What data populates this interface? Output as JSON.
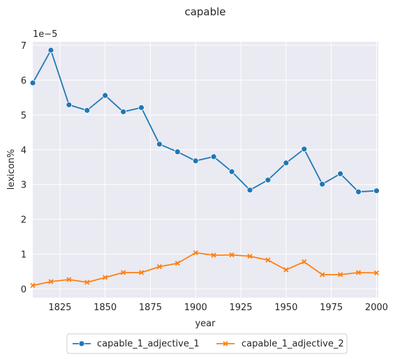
{
  "chart_data": {
    "type": "line",
    "title": "capable",
    "xlabel": "year",
    "ylabel": "lexicon%",
    "y_offset_label": "1e−5",
    "xlim": [
      1810,
      2001
    ],
    "ylim": [
      -0.25,
      7.1
    ],
    "xticks": [
      1825,
      1850,
      1875,
      1900,
      1925,
      1950,
      1975,
      2000
    ],
    "yticks": [
      0,
      1,
      2,
      3,
      4,
      5,
      6,
      7
    ],
    "grid": true,
    "legend_position": "bottom-center",
    "x": [
      1810,
      1820,
      1830,
      1840,
      1850,
      1860,
      1870,
      1880,
      1890,
      1900,
      1910,
      1920,
      1930,
      1940,
      1950,
      1960,
      1970,
      1980,
      1990,
      2000
    ],
    "series": [
      {
        "name": "capable_1_adjective_1",
        "color": "#1f77b4",
        "marker": "circle",
        "values": [
          5.92,
          6.86,
          5.29,
          5.13,
          5.56,
          5.09,
          5.21,
          4.16,
          3.94,
          3.68,
          3.8,
          3.37,
          2.84,
          3.13,
          3.62,
          4.02,
          3.01,
          3.31,
          2.79,
          2.82
        ]
      },
      {
        "name": "capable_1_adjective_2",
        "color": "#ff7f0e",
        "marker": "x",
        "values": [
          0.1,
          0.21,
          0.27,
          0.19,
          0.33,
          0.47,
          0.47,
          0.64,
          0.74,
          1.04,
          0.97,
          0.98,
          0.94,
          0.83,
          0.55,
          0.78,
          0.41,
          0.41,
          0.47,
          0.46
        ]
      }
    ]
  }
}
